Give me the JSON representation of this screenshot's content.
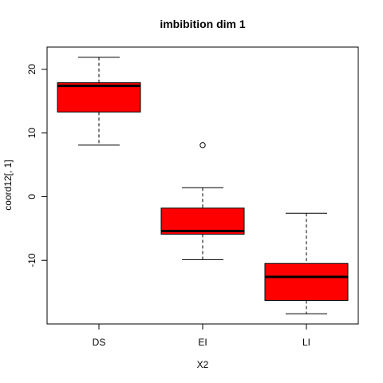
{
  "chart_data": {
    "type": "boxplot",
    "title": "imbibition dim 1",
    "xlabel": "X2",
    "ylabel": "coord12[, 1]",
    "categories": [
      "DS",
      "EI",
      "LI"
    ],
    "ylim": [
      -20,
      23.5
    ],
    "yticks": [
      -10,
      0,
      10,
      20
    ],
    "box_color": "#ff0000",
    "boxes": [
      {
        "category": "DS",
        "whisker_low": 8.1,
        "q1": 13.3,
        "median": 17.4,
        "q3": 17.9,
        "whisker_high": 21.9,
        "outliers": []
      },
      {
        "category": "EI",
        "whisker_low": -9.9,
        "q1": -5.9,
        "median": -5.4,
        "q3": -1.8,
        "whisker_high": 1.4,
        "outliers": [
          8.1
        ]
      },
      {
        "category": "LI",
        "whisker_low": -18.4,
        "q1": -16.3,
        "median": -12.6,
        "q3": -10.5,
        "whisker_high": -2.6,
        "outliers": []
      }
    ]
  }
}
